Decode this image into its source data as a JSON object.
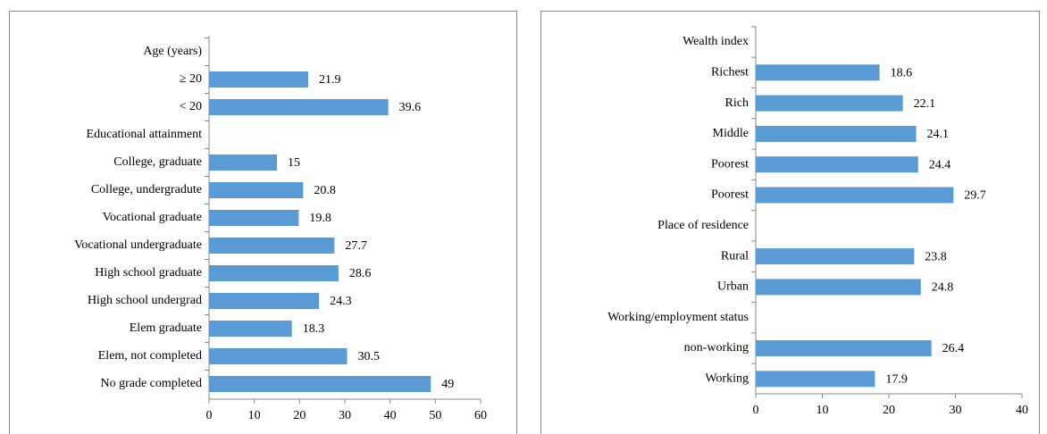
{
  "chart_data": [
    {
      "type": "bar",
      "orientation": "horizontal",
      "color": "#5b9bd5",
      "categories": [
        "Age (years)",
        "≥ 20",
        "< 20",
        "Educational attainment",
        "College, graduate",
        "College, undergradute",
        "Vocational graduate",
        "Vocational undergraduate",
        "High school graduate",
        "High school undergrad",
        "Elem graduate",
        "Elem, not completed",
        "No grade completed"
      ],
      "values": [
        null,
        21.9,
        39.6,
        null,
        15,
        20.8,
        19.8,
        27.7,
        28.6,
        24.3,
        18.3,
        30.5,
        49
      ],
      "xlim": [
        0,
        60
      ],
      "xticks": [
        0,
        10,
        20,
        30,
        40,
        50,
        60
      ]
    },
    {
      "type": "bar",
      "orientation": "horizontal",
      "color": "#5b9bd5",
      "categories": [
        "Wealth index",
        "Richest",
        "Rich",
        "Middle",
        "Poorest",
        "Poorest",
        "Place of residence",
        "Rural",
        "Urban",
        "Working/employment status",
        "non-working",
        "Working"
      ],
      "values": [
        null,
        18.6,
        22.1,
        24.1,
        24.4,
        29.7,
        null,
        23.8,
        24.8,
        null,
        26.4,
        17.9
      ],
      "xlim": [
        0,
        40
      ],
      "xticks": [
        0,
        10,
        20,
        30,
        40
      ]
    }
  ]
}
